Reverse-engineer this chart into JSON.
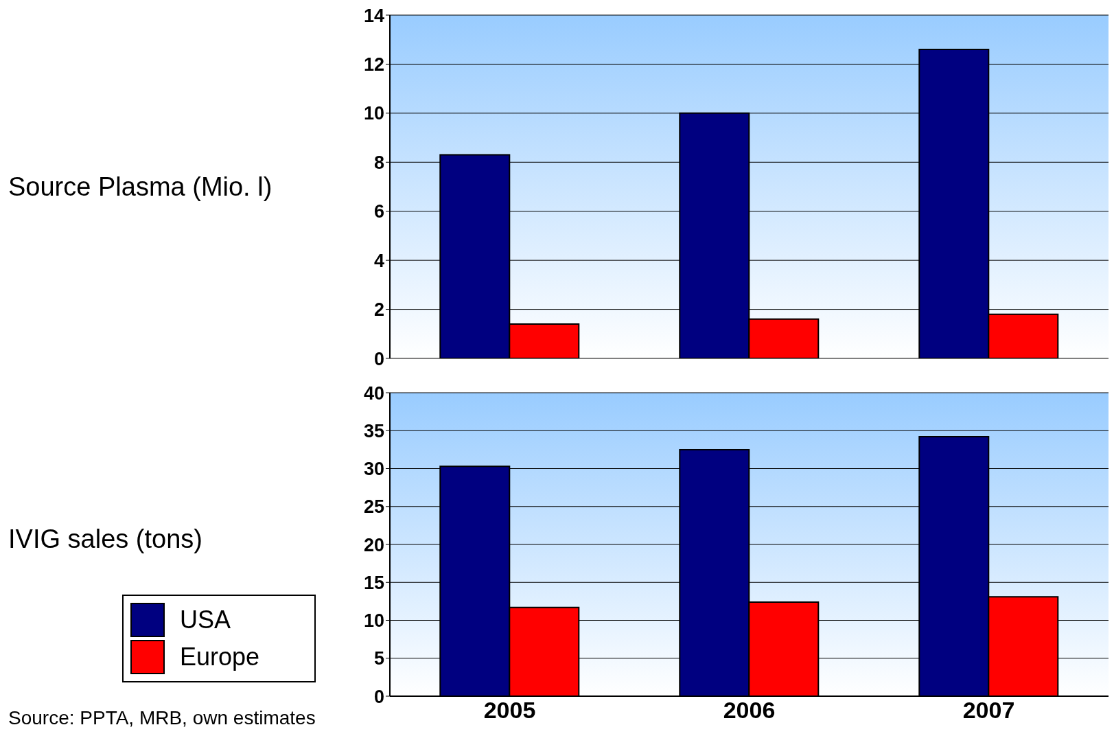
{
  "chart_data": [
    {
      "type": "bar",
      "ylabel": "Source Plasma (Mio. l)",
      "categories": [
        "2005",
        "2006",
        "2007"
      ],
      "series": [
        {
          "color": "#000080",
          "values": [
            8.3,
            10.0,
            12.6
          ]
        },
        {
          "color": "#ff0000",
          "values": [
            1.4,
            1.6,
            1.8
          ]
        }
      ],
      "ylim": [
        0,
        14
      ],
      "yticks": [
        0,
        2,
        4,
        6,
        8,
        10,
        12,
        14
      ],
      "grid": "y",
      "tick_labels": "y"
    },
    {
      "type": "bar",
      "ylabel": "IVIG sales (tons)",
      "categories": [
        "2005",
        "2006",
        "2007"
      ],
      "series": [
        {
          "name": "USA",
          "color": "#000080",
          "values": [
            30.3,
            32.5,
            34.2
          ]
        },
        {
          "name": "Europe",
          "color": "#ff0000",
          "values": [
            11.7,
            12.4,
            13.1
          ]
        }
      ],
      "ylim": [
        0,
        40
      ],
      "yticks": [
        0,
        5,
        10,
        15,
        20,
        25,
        30,
        35,
        40
      ],
      "grid": "y",
      "legend": "bottom left",
      "annotations": [
        "Source: PPTA, MRB, own estimates"
      ]
    }
  ]
}
